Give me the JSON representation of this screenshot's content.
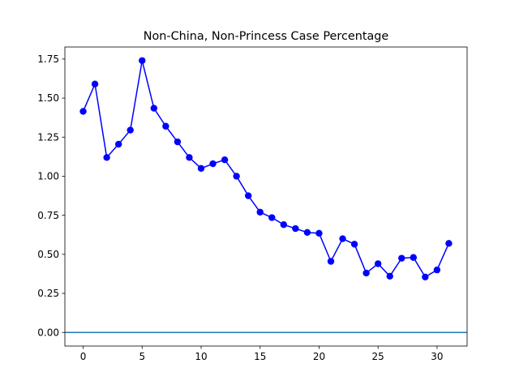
{
  "chart_data": {
    "type": "line",
    "title": "Non-China, Non-Princess Case Percentage",
    "xlabel": "",
    "ylabel": "",
    "xlim": [
      -1.55,
      32.55
    ],
    "ylim": [
      -0.087,
      1.827
    ],
    "x_ticks": [
      0,
      5,
      10,
      15,
      20,
      25,
      30
    ],
    "x_tick_labels": [
      "0",
      "5",
      "10",
      "15",
      "20",
      "25",
      "30"
    ],
    "y_ticks": [
      0.0,
      0.25,
      0.5,
      0.75,
      1.0,
      1.25,
      1.5,
      1.75
    ],
    "y_tick_labels": [
      "0.00",
      "0.25",
      "0.50",
      "0.75",
      "1.00",
      "1.25",
      "1.50",
      "1.75"
    ],
    "grid": false,
    "series": [
      {
        "color": "#0000ff",
        "marker": "circle",
        "x": [
          0,
          1,
          2,
          3,
          4,
          5,
          6,
          7,
          8,
          9,
          10,
          11,
          12,
          13,
          14,
          15,
          16,
          17,
          18,
          19,
          20,
          21,
          22,
          23,
          24,
          25,
          26,
          27,
          28,
          29,
          30,
          31
        ],
        "values": [
          1.415,
          1.59,
          1.12,
          1.205,
          1.295,
          1.74,
          1.435,
          1.32,
          1.22,
          1.12,
          1.05,
          1.08,
          1.105,
          1.0,
          0.875,
          0.77,
          0.735,
          0.69,
          0.665,
          0.64,
          0.635,
          0.455,
          0.6,
          0.565,
          0.38,
          0.44,
          0.36,
          0.475,
          0.48,
          0.355,
          0.4,
          0.57
        ]
      }
    ],
    "hlines": [
      {
        "y": 0,
        "color": "#1f77b4"
      }
    ]
  }
}
